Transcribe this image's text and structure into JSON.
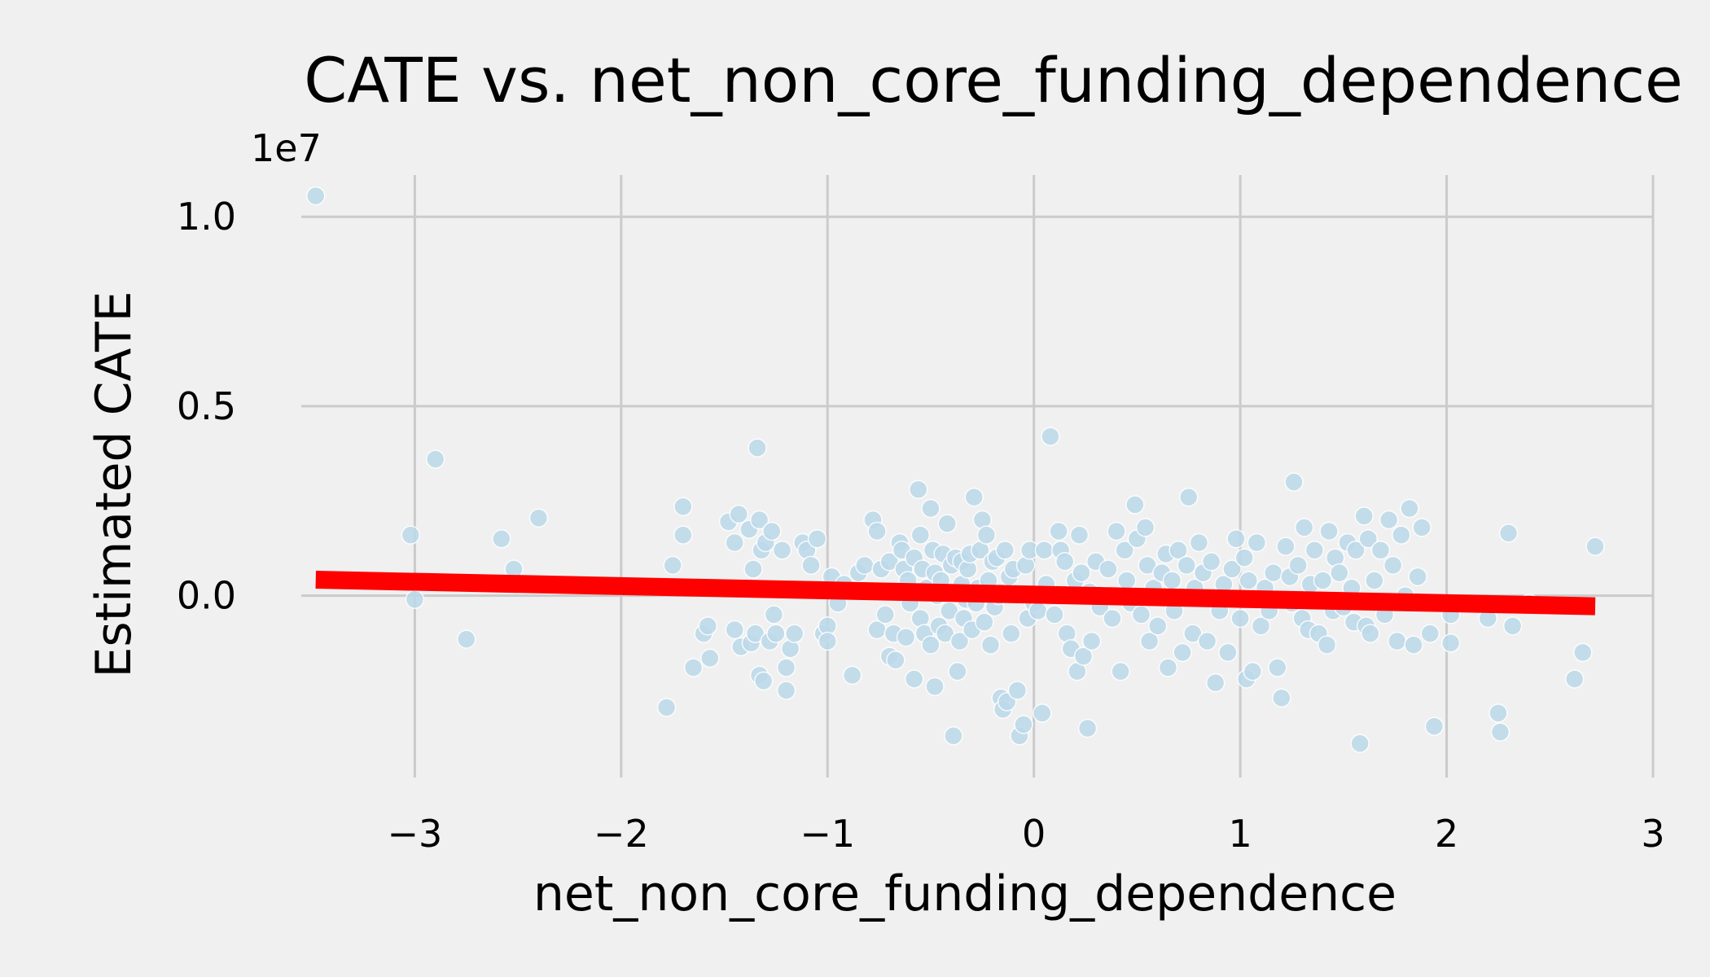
{
  "chart_data": {
    "type": "scatter",
    "title": "CATE vs. net_non_core_funding_dependence",
    "xlabel": "net_non_core_funding_dependence",
    "ylabel": "Estimated CATE",
    "y_offset_label": "1e7",
    "xlim": [
      -3.55,
      3.0
    ],
    "ylim": [
      -0.48,
      1.11
    ],
    "x_ticks": [
      -3,
      -2,
      -1,
      0,
      1,
      2,
      3
    ],
    "x_tick_labels": [
      "−3",
      "−2",
      "−1",
      "0",
      "1",
      "2",
      "3"
    ],
    "y_ticks": [
      0.0,
      0.5,
      1.0
    ],
    "y_tick_labels": [
      "0.0",
      "0.5",
      "1.0"
    ],
    "grid": true,
    "point_color": "#bcd9ea",
    "trend_color": "#ff0000",
    "trend_line": {
      "x": [
        -3.48,
        2.72
      ],
      "y": [
        0.042,
        -0.028
      ]
    },
    "points": [
      [
        -3.48,
        1.055
      ],
      [
        -3.02,
        0.16
      ],
      [
        -3.0,
        -0.01
      ],
      [
        -2.9,
        0.36
      ],
      [
        -2.75,
        -0.115
      ],
      [
        -2.58,
        0.15
      ],
      [
        -2.52,
        0.07
      ],
      [
        -2.4,
        0.205
      ],
      [
        -1.78,
        -0.295
      ],
      [
        -1.75,
        0.08
      ],
      [
        -1.7,
        0.235
      ],
      [
        -1.7,
        0.16
      ],
      [
        -1.65,
        -0.19
      ],
      [
        -1.6,
        -0.1
      ],
      [
        -1.58,
        -0.08
      ],
      [
        -1.57,
        -0.165
      ],
      [
        -1.48,
        0.195
      ],
      [
        -1.45,
        0.14
      ],
      [
        -1.45,
        -0.09
      ],
      [
        -1.43,
        0.215
      ],
      [
        -1.42,
        -0.135
      ],
      [
        -1.38,
        0.175
      ],
      [
        -1.37,
        -0.125
      ],
      [
        -1.36,
        0.07
      ],
      [
        -1.35,
        -0.1
      ],
      [
        -1.34,
        0.39
      ],
      [
        -1.33,
        0.2
      ],
      [
        -1.33,
        -0.21
      ],
      [
        -1.32,
        0.12
      ],
      [
        -1.31,
        -0.225
      ],
      [
        -1.3,
        0.14
      ],
      [
        -1.28,
        -0.12
      ],
      [
        -1.27,
        0.17
      ],
      [
        -1.26,
        -0.05
      ],
      [
        -1.25,
        -0.1
      ],
      [
        -1.22,
        0.12
      ],
      [
        -1.2,
        -0.25
      ],
      [
        -1.2,
        -0.19
      ],
      [
        -1.18,
        -0.14
      ],
      [
        -1.16,
        -0.1
      ],
      [
        -1.12,
        0.14
      ],
      [
        -1.1,
        0.12
      ],
      [
        -1.08,
        0.08
      ],
      [
        -1.05,
        0.15
      ],
      [
        -1.02,
        -0.1
      ],
      [
        -1.0,
        -0.08
      ],
      [
        -1.0,
        -0.12
      ],
      [
        -0.98,
        0.05
      ],
      [
        -0.95,
        -0.02
      ],
      [
        -0.92,
        0.03
      ],
      [
        -0.88,
        -0.21
      ],
      [
        -0.85,
        0.06
      ],
      [
        -0.82,
        0.08
      ],
      [
        -0.78,
        0.2
      ],
      [
        -0.76,
        0.17
      ],
      [
        -0.76,
        -0.09
      ],
      [
        -0.74,
        0.07
      ],
      [
        -0.72,
        -0.05
      ],
      [
        -0.7,
        0.09
      ],
      [
        -0.7,
        -0.16
      ],
      [
        -0.68,
        -0.1
      ],
      [
        -0.67,
        -0.17
      ],
      [
        -0.65,
        0.14
      ],
      [
        -0.64,
        0.12
      ],
      [
        -0.63,
        0.07
      ],
      [
        -0.62,
        -0.11
      ],
      [
        -0.61,
        0.04
      ],
      [
        -0.6,
        -0.02
      ],
      [
        -0.58,
        0.1
      ],
      [
        -0.58,
        -0.22
      ],
      [
        -0.56,
        0.28
      ],
      [
        -0.55,
        0.16
      ],
      [
        -0.55,
        -0.06
      ],
      [
        -0.54,
        0.07
      ],
      [
        -0.53,
        -0.1
      ],
      [
        -0.52,
        0.02
      ],
      [
        -0.5,
        0.23
      ],
      [
        -0.5,
        -0.13
      ],
      [
        -0.49,
        0.12
      ],
      [
        -0.48,
        0.06
      ],
      [
        -0.48,
        -0.24
      ],
      [
        -0.47,
        0.0
      ],
      [
        -0.46,
        -0.08
      ],
      [
        -0.45,
        0.04
      ],
      [
        -0.44,
        0.11
      ],
      [
        -0.43,
        -0.1
      ],
      [
        -0.42,
        0.19
      ],
      [
        -0.41,
        -0.04
      ],
      [
        -0.4,
        0.08
      ],
      [
        -0.39,
        -0.37
      ],
      [
        -0.38,
        0.1
      ],
      [
        -0.37,
        -0.2
      ],
      [
        -0.36,
        -0.12
      ],
      [
        -0.35,
        0.03
      ],
      [
        -0.35,
        0.09
      ],
      [
        -0.34,
        -0.06
      ],
      [
        -0.33,
        -0.01
      ],
      [
        -0.32,
        0.07
      ],
      [
        -0.31,
        0.11
      ],
      [
        -0.3,
        -0.09
      ],
      [
        -0.29,
        0.26
      ],
      [
        -0.28,
        -0.02
      ],
      [
        -0.27,
        0.02
      ],
      [
        -0.26,
        0.12
      ],
      [
        -0.25,
        0.2
      ],
      [
        -0.24,
        -0.07
      ],
      [
        -0.23,
        0.16
      ],
      [
        -0.22,
        0.04
      ],
      [
        -0.21,
        -0.13
      ],
      [
        -0.2,
        0.09
      ],
      [
        -0.19,
        -0.03
      ],
      [
        -0.18,
        0.1
      ],
      [
        -0.17,
        0.0
      ],
      [
        -0.16,
        -0.27
      ],
      [
        -0.15,
        -0.3
      ],
      [
        -0.14,
        0.12
      ],
      [
        -0.13,
        -0.28
      ],
      [
        -0.12,
        0.05
      ],
      [
        -0.11,
        -0.1
      ],
      [
        -0.1,
        0.07
      ],
      [
        -0.08,
        -0.25
      ],
      [
        -0.07,
        -0.37
      ],
      [
        -0.05,
        -0.34
      ],
      [
        -0.04,
        0.08
      ],
      [
        -0.03,
        -0.06
      ],
      [
        -0.02,
        0.12
      ],
      [
        0.0,
        -0.02
      ],
      [
        0.02,
        -0.04
      ],
      [
        0.04,
        -0.31
      ],
      [
        0.05,
        0.12
      ],
      [
        0.06,
        0.03
      ],
      [
        0.08,
        0.42
      ],
      [
        0.1,
        -0.05
      ],
      [
        0.12,
        0.17
      ],
      [
        0.13,
        0.12
      ],
      [
        0.15,
        0.09
      ],
      [
        0.16,
        -0.1
      ],
      [
        0.18,
        -0.14
      ],
      [
        0.2,
        0.04
      ],
      [
        0.21,
        -0.2
      ],
      [
        0.22,
        0.16
      ],
      [
        0.23,
        0.06
      ],
      [
        0.24,
        -0.16
      ],
      [
        0.26,
        -0.35
      ],
      [
        0.27,
        0.01
      ],
      [
        0.28,
        -0.12
      ],
      [
        0.3,
        0.09
      ],
      [
        0.32,
        -0.03
      ],
      [
        0.34,
        0.0
      ],
      [
        0.36,
        0.07
      ],
      [
        0.38,
        -0.06
      ],
      [
        0.4,
        0.17
      ],
      [
        0.42,
        -0.2
      ],
      [
        0.44,
        0.12
      ],
      [
        0.45,
        0.04
      ],
      [
        0.47,
        -0.02
      ],
      [
        0.49,
        0.24
      ],
      [
        0.5,
        0.15
      ],
      [
        0.52,
        -0.05
      ],
      [
        0.54,
        0.18
      ],
      [
        0.55,
        0.08
      ],
      [
        0.56,
        -0.12
      ],
      [
        0.58,
        0.02
      ],
      [
        0.6,
        -0.08
      ],
      [
        0.62,
        0.06
      ],
      [
        0.64,
        0.11
      ],
      [
        0.65,
        -0.19
      ],
      [
        0.67,
        0.04
      ],
      [
        0.68,
        -0.04
      ],
      [
        0.7,
        0.12
      ],
      [
        0.72,
        -0.15
      ],
      [
        0.74,
        0.08
      ],
      [
        0.75,
        0.26
      ],
      [
        0.77,
        -0.1
      ],
      [
        0.78,
        0.02
      ],
      [
        0.8,
        0.14
      ],
      [
        0.82,
        0.06
      ],
      [
        0.84,
        -0.12
      ],
      [
        0.86,
        0.09
      ],
      [
        0.88,
        -0.23
      ],
      [
        0.9,
        -0.04
      ],
      [
        0.92,
        0.03
      ],
      [
        0.94,
        -0.15
      ],
      [
        0.96,
        0.07
      ],
      [
        0.98,
        0.15
      ],
      [
        1.0,
        -0.06
      ],
      [
        1.02,
        0.1
      ],
      [
        1.03,
        -0.22
      ],
      [
        1.04,
        0.04
      ],
      [
        1.06,
        -0.2
      ],
      [
        1.08,
        0.14
      ],
      [
        1.1,
        -0.08
      ],
      [
        1.12,
        0.02
      ],
      [
        1.14,
        -0.04
      ],
      [
        1.16,
        0.06
      ],
      [
        1.18,
        -0.19
      ],
      [
        1.2,
        -0.27
      ],
      [
        1.22,
        0.13
      ],
      [
        1.24,
        0.05
      ],
      [
        1.25,
        -0.02
      ],
      [
        1.26,
        0.3
      ],
      [
        1.28,
        0.08
      ],
      [
        1.3,
        -0.06
      ],
      [
        1.31,
        0.18
      ],
      [
        1.33,
        -0.09
      ],
      [
        1.34,
        0.03
      ],
      [
        1.36,
        0.12
      ],
      [
        1.38,
        -0.1
      ],
      [
        1.4,
        0.04
      ],
      [
        1.42,
        -0.13
      ],
      [
        1.43,
        0.17
      ],
      [
        1.45,
        -0.04
      ],
      [
        1.46,
        0.1
      ],
      [
        1.48,
        0.06
      ],
      [
        1.5,
        -0.03
      ],
      [
        1.52,
        0.14
      ],
      [
        1.54,
        0.02
      ],
      [
        1.55,
        -0.07
      ],
      [
        1.56,
        0.12
      ],
      [
        1.58,
        -0.39
      ],
      [
        1.6,
        0.21
      ],
      [
        1.61,
        -0.08
      ],
      [
        1.62,
        0.15
      ],
      [
        1.63,
        -0.1
      ],
      [
        1.65,
        0.04
      ],
      [
        1.68,
        0.12
      ],
      [
        1.7,
        -0.05
      ],
      [
        1.72,
        0.2
      ],
      [
        1.74,
        0.08
      ],
      [
        1.76,
        -0.12
      ],
      [
        1.78,
        0.16
      ],
      [
        1.8,
        0.0
      ],
      [
        1.82,
        0.23
      ],
      [
        1.84,
        -0.13
      ],
      [
        1.86,
        0.05
      ],
      [
        1.88,
        0.18
      ],
      [
        1.92,
        -0.1
      ],
      [
        1.94,
        -0.345
      ],
      [
        2.02,
        -0.05
      ],
      [
        2.02,
        -0.125
      ],
      [
        2.2,
        -0.06
      ],
      [
        2.25,
        -0.31
      ],
      [
        2.26,
        -0.36
      ],
      [
        2.3,
        0.165
      ],
      [
        2.32,
        -0.08
      ],
      [
        2.4,
        -0.02
      ],
      [
        2.62,
        -0.22
      ],
      [
        2.66,
        -0.15
      ],
      [
        2.72,
        0.13
      ]
    ]
  }
}
